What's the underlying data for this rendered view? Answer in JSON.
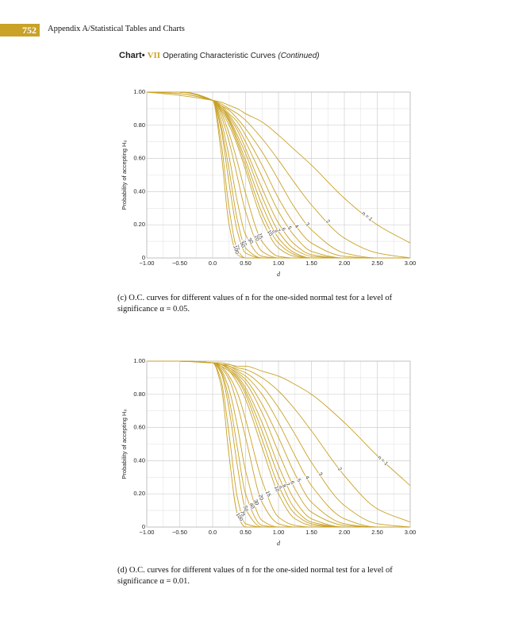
{
  "header": {
    "page_number": "752",
    "running_title": "Appendix A/Statistical Tables and Charts"
  },
  "chart_title": {
    "label": "Chart•",
    "number": "VII",
    "text": "Operating Characteristic Curves",
    "note": "(Continued)"
  },
  "chart_data": [
    {
      "type": "line",
      "color": "#c9a227",
      "grid": true,
      "x_label": "d",
      "y_label": "Probability of accepting H₀",
      "caption": "(c) O.C. curves for different values of n for the one-sided normal test for a level of significance α = 0.05.",
      "xlim": [
        -1,
        3
      ],
      "ylim": [
        0,
        1
      ],
      "xticks": [
        {
          "value": -1,
          "label": "−1.00"
        },
        {
          "value": -0.5,
          "label": "−0.50"
        },
        {
          "value": 0,
          "label": "0.0"
        },
        {
          "value": 0.5,
          "label": "0.50"
        },
        {
          "value": 1,
          "label": "1.00"
        },
        {
          "value": 1.5,
          "label": "1.50"
        },
        {
          "value": 2,
          "label": "2.00"
        },
        {
          "value": 2.5,
          "label": "2.50"
        },
        {
          "value": 3,
          "label": "3.00"
        }
      ],
      "yticks": [
        0,
        {
          "value": 0.2,
          "label": "0.20"
        },
        {
          "value": 0.4,
          "label": "0.40"
        },
        {
          "value": 0.6,
          "label": "0.60"
        },
        {
          "value": 0.8,
          "label": "0.80"
        },
        {
          "value": 1,
          "label": "1.00"
        }
      ],
      "x_minor_grid": [
        -0.75,
        -0.25,
        0.25,
        0.75,
        1.25,
        1.75,
        2.25,
        2.75
      ],
      "y_minor_grid": [
        0.1,
        0.3,
        0.5,
        0.7,
        0.9
      ],
      "x": [
        -1,
        -0.5,
        0,
        0.125,
        0.25,
        0.375,
        0.5,
        0.75,
        1,
        1.25,
        1.5,
        2,
        2.5,
        3
      ],
      "series": [
        {
          "name": "n = 1",
          "values": [
            1,
            0.98,
            0.95,
            0.94,
            0.92,
            0.9,
            0.87,
            0.82,
            0.74,
            0.65,
            0.56,
            0.36,
            0.2,
            0.09
          ]
        },
        {
          "name": "2",
          "values": [
            1,
            0.99,
            0.95,
            0.93,
            0.9,
            0.87,
            0.83,
            0.72,
            0.59,
            0.45,
            0.32,
            0.12,
            0.03,
            0
          ]
        },
        {
          "name": "3",
          "values": [
            1,
            0.99,
            0.95,
            0.92,
            0.89,
            0.84,
            0.78,
            0.64,
            0.47,
            0.3,
            0.17,
            0.03,
            0,
            0
          ]
        },
        {
          "name": "4",
          "values": [
            1,
            1,
            0.95,
            0.92,
            0.87,
            0.82,
            0.74,
            0.56,
            0.36,
            0.2,
            0.09,
            0.01,
            0,
            0
          ]
        },
        {
          "name": "5",
          "values": [
            1,
            1,
            0.95,
            0.91,
            0.86,
            0.79,
            0.7,
            0.49,
            0.28,
            0.13,
            0.04,
            0,
            0,
            0
          ]
        },
        {
          "name": "6",
          "values": [
            1,
            1,
            0.95,
            0.91,
            0.85,
            0.77,
            0.66,
            0.42,
            0.21,
            0.08,
            0.02,
            0,
            0,
            0
          ]
        },
        {
          "name": "7",
          "values": [
            1,
            1,
            0.95,
            0.91,
            0.84,
            0.74,
            0.63,
            0.37,
            0.16,
            0.05,
            0.01,
            0,
            0,
            0
          ]
        },
        {
          "name": "8",
          "values": [
            1,
            1,
            0.95,
            0.9,
            0.83,
            0.72,
            0.59,
            0.32,
            0.12,
            0.03,
            0,
            0,
            0,
            0
          ]
        },
        {
          "name": "9",
          "values": [
            1,
            1,
            0.95,
            0.9,
            0.82,
            0.7,
            0.56,
            0.27,
            0.09,
            0.02,
            0,
            0,
            0,
            0
          ]
        },
        {
          "name": "10",
          "values": [
            1,
            1,
            0.95,
            0.89,
            0.8,
            0.68,
            0.53,
            0.23,
            0.06,
            0.01,
            0,
            0,
            0,
            0
          ]
        },
        {
          "name": "15",
          "values": [
            1,
            1,
            0.95,
            0.88,
            0.75,
            0.58,
            0.39,
            0.1,
            0.01,
            0,
            0,
            0,
            0,
            0
          ]
        },
        {
          "name": "20",
          "values": [
            1,
            1,
            0.95,
            0.86,
            0.7,
            0.49,
            0.28,
            0.04,
            0,
            0,
            0,
            0,
            0,
            0
          ]
        },
        {
          "name": "30",
          "values": [
            1,
            1,
            0.95,
            0.83,
            0.61,
            0.34,
            0.14,
            0.01,
            0,
            0,
            0,
            0,
            0,
            0
          ]
        },
        {
          "name": "40",
          "values": [
            1,
            1,
            0.95,
            0.8,
            0.53,
            0.23,
            0.06,
            0,
            0,
            0,
            0,
            0,
            0,
            0
          ]
        },
        {
          "name": "50",
          "values": [
            1,
            1,
            0.95,
            0.78,
            0.45,
            0.16,
            0.03,
            0,
            0,
            0,
            0,
            0,
            0,
            0
          ]
        },
        {
          "name": "75",
          "values": [
            1,
            1,
            0.95,
            0.71,
            0.3,
            0.05,
            0,
            0,
            0,
            0,
            0,
            0,
            0,
            0
          ]
        },
        {
          "name": "100",
          "values": [
            1,
            1,
            0.95,
            0.65,
            0.2,
            0.02,
            0,
            0,
            0,
            0,
            0,
            0,
            0,
            0
          ]
        }
      ]
    },
    {
      "type": "line",
      "color": "#c9a227",
      "grid": true,
      "x_label": "d",
      "y_label": "Probability of accepting H₀",
      "caption": "(d) O.C. curves for different values of n for the one-sided normal test for a level of significance α = 0.01.",
      "xlim": [
        -1,
        3
      ],
      "ylim": [
        0,
        1
      ],
      "xticks": [
        {
          "value": -1,
          "label": "−1.00"
        },
        {
          "value": -0.5,
          "label": "−0.50"
        },
        {
          "value": 0,
          "label": "0.0"
        },
        {
          "value": 0.5,
          "label": "0.50"
        },
        {
          "value": 1,
          "label": "1.00"
        },
        {
          "value": 1.5,
          "label": "1.50"
        },
        {
          "value": 2,
          "label": "2.00"
        },
        {
          "value": 2.5,
          "label": "2.50"
        },
        {
          "value": 3,
          "label": "3.00"
        }
      ],
      "yticks": [
        0,
        {
          "value": 0.2,
          "label": "0.20"
        },
        {
          "value": 0.4,
          "label": "0.40"
        },
        {
          "value": 0.6,
          "label": "0.60"
        },
        {
          "value": 0.8,
          "label": "0.80"
        },
        {
          "value": 1,
          "label": "1.00"
        }
      ],
      "x_minor_grid": [
        -0.75,
        -0.25,
        0.25,
        0.75,
        1.25,
        1.75,
        2.25,
        2.75
      ],
      "y_minor_grid": [
        0.1,
        0.3,
        0.5,
        0.7,
        0.9
      ],
      "x": [
        -1,
        -0.5,
        0,
        0.125,
        0.25,
        0.375,
        0.5,
        0.75,
        1,
        1.25,
        1.5,
        2,
        2.5,
        3
      ],
      "series": [
        {
          "name": "n = 1",
          "values": [
            1,
            1,
            0.99,
            0.99,
            0.98,
            0.97,
            0.97,
            0.94,
            0.91,
            0.86,
            0.8,
            0.63,
            0.43,
            0.25
          ]
        },
        {
          "name": "2",
          "values": [
            1,
            1,
            0.99,
            0.98,
            0.98,
            0.96,
            0.95,
            0.9,
            0.82,
            0.71,
            0.58,
            0.31,
            0.11,
            0.03
          ]
        },
        {
          "name": "3",
          "values": [
            1,
            1,
            0.99,
            0.98,
            0.97,
            0.95,
            0.93,
            0.85,
            0.72,
            0.56,
            0.39,
            0.13,
            0.02,
            0
          ]
        },
        {
          "name": "4",
          "values": [
            1,
            1,
            0.99,
            0.98,
            0.97,
            0.94,
            0.91,
            0.8,
            0.63,
            0.43,
            0.25,
            0.05,
            0,
            0
          ]
        },
        {
          "name": "5",
          "values": [
            1,
            1,
            0.99,
            0.98,
            0.96,
            0.93,
            0.89,
            0.74,
            0.54,
            0.32,
            0.15,
            0.02,
            0,
            0
          ]
        },
        {
          "name": "6",
          "values": [
            1,
            1,
            0.99,
            0.98,
            0.96,
            0.92,
            0.87,
            0.69,
            0.45,
            0.23,
            0.09,
            0.01,
            0,
            0
          ]
        },
        {
          "name": "7",
          "values": [
            1,
            1,
            0.99,
            0.98,
            0.95,
            0.91,
            0.84,
            0.63,
            0.37,
            0.16,
            0.05,
            0,
            0,
            0
          ]
        },
        {
          "name": "8",
          "values": [
            1,
            1,
            0.99,
            0.98,
            0.95,
            0.9,
            0.82,
            0.58,
            0.31,
            0.11,
            0.03,
            0,
            0,
            0
          ]
        },
        {
          "name": "9",
          "values": [
            1,
            1,
            0.99,
            0.97,
            0.94,
            0.89,
            0.8,
            0.53,
            0.25,
            0.08,
            0.02,
            0,
            0,
            0
          ]
        },
        {
          "name": "10",
          "values": [
            1,
            1,
            0.99,
            0.97,
            0.94,
            0.87,
            0.77,
            0.48,
            0.2,
            0.05,
            0.01,
            0,
            0,
            0
          ]
        },
        {
          "name": "15",
          "values": [
            1,
            1,
            0.99,
            0.97,
            0.91,
            0.81,
            0.65,
            0.28,
            0.06,
            0.01,
            0,
            0,
            0,
            0
          ]
        },
        {
          "name": "20",
          "values": [
            1,
            1,
            0.99,
            0.96,
            0.89,
            0.74,
            0.54,
            0.15,
            0.02,
            0,
            0,
            0,
            0,
            0
          ]
        },
        {
          "name": "30",
          "values": [
            1,
            1,
            0.99,
            0.95,
            0.83,
            0.61,
            0.34,
            0.04,
            0,
            0,
            0,
            0,
            0,
            0
          ]
        },
        {
          "name": "40",
          "values": [
            1,
            1,
            0.99,
            0.94,
            0.77,
            0.48,
            0.2,
            0.01,
            0,
            0,
            0,
            0,
            0,
            0
          ]
        },
        {
          "name": "50",
          "values": [
            1,
            1,
            0.99,
            0.93,
            0.71,
            0.37,
            0.11,
            0,
            0,
            0,
            0,
            0,
            0,
            0
          ]
        },
        {
          "name": "75",
          "values": [
            1,
            1,
            0.99,
            0.89,
            0.56,
            0.18,
            0.02,
            0,
            0,
            0,
            0,
            0,
            0,
            0
          ]
        },
        {
          "name": "100",
          "values": [
            1,
            1,
            0.99,
            0.86,
            0.43,
            0.08,
            0,
            0,
            0,
            0,
            0,
            0,
            0,
            0
          ]
        }
      ]
    }
  ]
}
